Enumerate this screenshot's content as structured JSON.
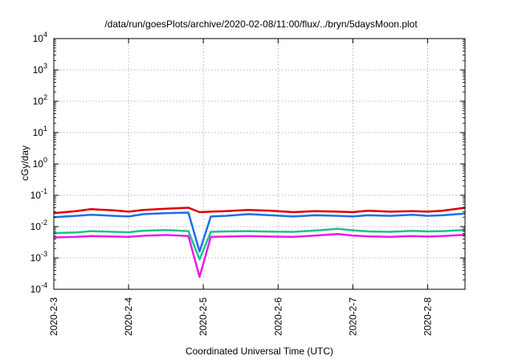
{
  "chart_data": {
    "type": "line",
    "title": "/data/run/goesPlots/archive/2020-02-08/11:00/flux/../bryn/5daysMoon.plot",
    "xlabel": "Coordinated Universal Time (UTC)",
    "ylabel": "cGy/day",
    "y_scale": "log",
    "ylim": [
      0.0001,
      10000
    ],
    "xlim": [
      0,
      5.5
    ],
    "x_origin_date": "2020-2-3",
    "grid": true,
    "legend": "none",
    "x_tick_labels": [
      "2020-2-3",
      "2020-2-4",
      "2020-2-5",
      "2020-2-6",
      "2020-2-7",
      "2020-2-8"
    ],
    "y_tick_labels": [
      {
        "base": "10",
        "exp": "-4"
      },
      {
        "base": "10",
        "exp": "-3"
      },
      {
        "base": "10",
        "exp": "-2"
      },
      {
        "base": "10",
        "exp": "-1"
      },
      {
        "base": "10",
        "exp": "0"
      },
      {
        "base": "10",
        "exp": "1"
      },
      {
        "base": "10",
        "exp": "2"
      },
      {
        "base": "10",
        "exp": "3"
      },
      {
        "base": "10",
        "exp": "4"
      }
    ],
    "series": [
      {
        "color": "#dd0000",
        "x": [
          0,
          0.3,
          0.5,
          0.8,
          1.0,
          1.2,
          1.5,
          1.8,
          1.95,
          2.1,
          2.3,
          2.6,
          2.9,
          3.2,
          3.5,
          3.8,
          4.0,
          4.2,
          4.5,
          4.8,
          5.0,
          5.2,
          5.5
        ],
        "y": [
          0.027,
          0.031,
          0.036,
          0.033,
          0.03,
          0.034,
          0.037,
          0.04,
          0.029,
          0.03,
          0.031,
          0.034,
          0.032,
          0.029,
          0.031,
          0.03,
          0.029,
          0.032,
          0.03,
          0.031,
          0.03,
          0.032,
          0.04
        ]
      },
      {
        "color": "#1e6fe6",
        "x": [
          0,
          0.3,
          0.5,
          0.8,
          1.0,
          1.2,
          1.5,
          1.8,
          1.95,
          2.1,
          2.3,
          2.6,
          2.9,
          3.2,
          3.5,
          3.8,
          4.0,
          4.2,
          4.5,
          4.8,
          5.0,
          5.2,
          5.5
        ],
        "y": [
          0.02,
          0.022,
          0.024,
          0.022,
          0.021,
          0.025,
          0.027,
          0.028,
          0.0016,
          0.021,
          0.022,
          0.025,
          0.023,
          0.021,
          0.023,
          0.022,
          0.021,
          0.023,
          0.022,
          0.024,
          0.022,
          0.023,
          0.026
        ]
      },
      {
        "color": "#20c08a",
        "x": [
          0,
          0.3,
          0.5,
          0.8,
          1.0,
          1.2,
          1.5,
          1.8,
          1.95,
          2.1,
          2.3,
          2.6,
          2.9,
          3.2,
          3.5,
          3.8,
          4.0,
          4.2,
          4.5,
          4.8,
          5.0,
          5.2,
          5.5
        ],
        "y": [
          0.0062,
          0.0065,
          0.0072,
          0.0068,
          0.0066,
          0.0074,
          0.0078,
          0.0072,
          0.0009,
          0.0068,
          0.007,
          0.0072,
          0.0069,
          0.0068,
          0.0075,
          0.0085,
          0.0076,
          0.007,
          0.0068,
          0.0073,
          0.007,
          0.0072,
          0.0078
        ]
      },
      {
        "color": "#e61ee6",
        "x": [
          0,
          0.3,
          0.5,
          0.8,
          1.0,
          1.2,
          1.5,
          1.8,
          1.95,
          2.1,
          2.3,
          2.6,
          2.9,
          3.2,
          3.5,
          3.8,
          4.0,
          4.2,
          4.5,
          4.8,
          5.0,
          5.2,
          5.5
        ],
        "y": [
          0.0045,
          0.0047,
          0.005,
          0.0048,
          0.0047,
          0.0051,
          0.0054,
          0.005,
          0.00025,
          0.0047,
          0.0048,
          0.005,
          0.0048,
          0.0047,
          0.0052,
          0.0058,
          0.0052,
          0.0049,
          0.0047,
          0.005,
          0.0048,
          0.005,
          0.0055
        ]
      }
    ]
  }
}
